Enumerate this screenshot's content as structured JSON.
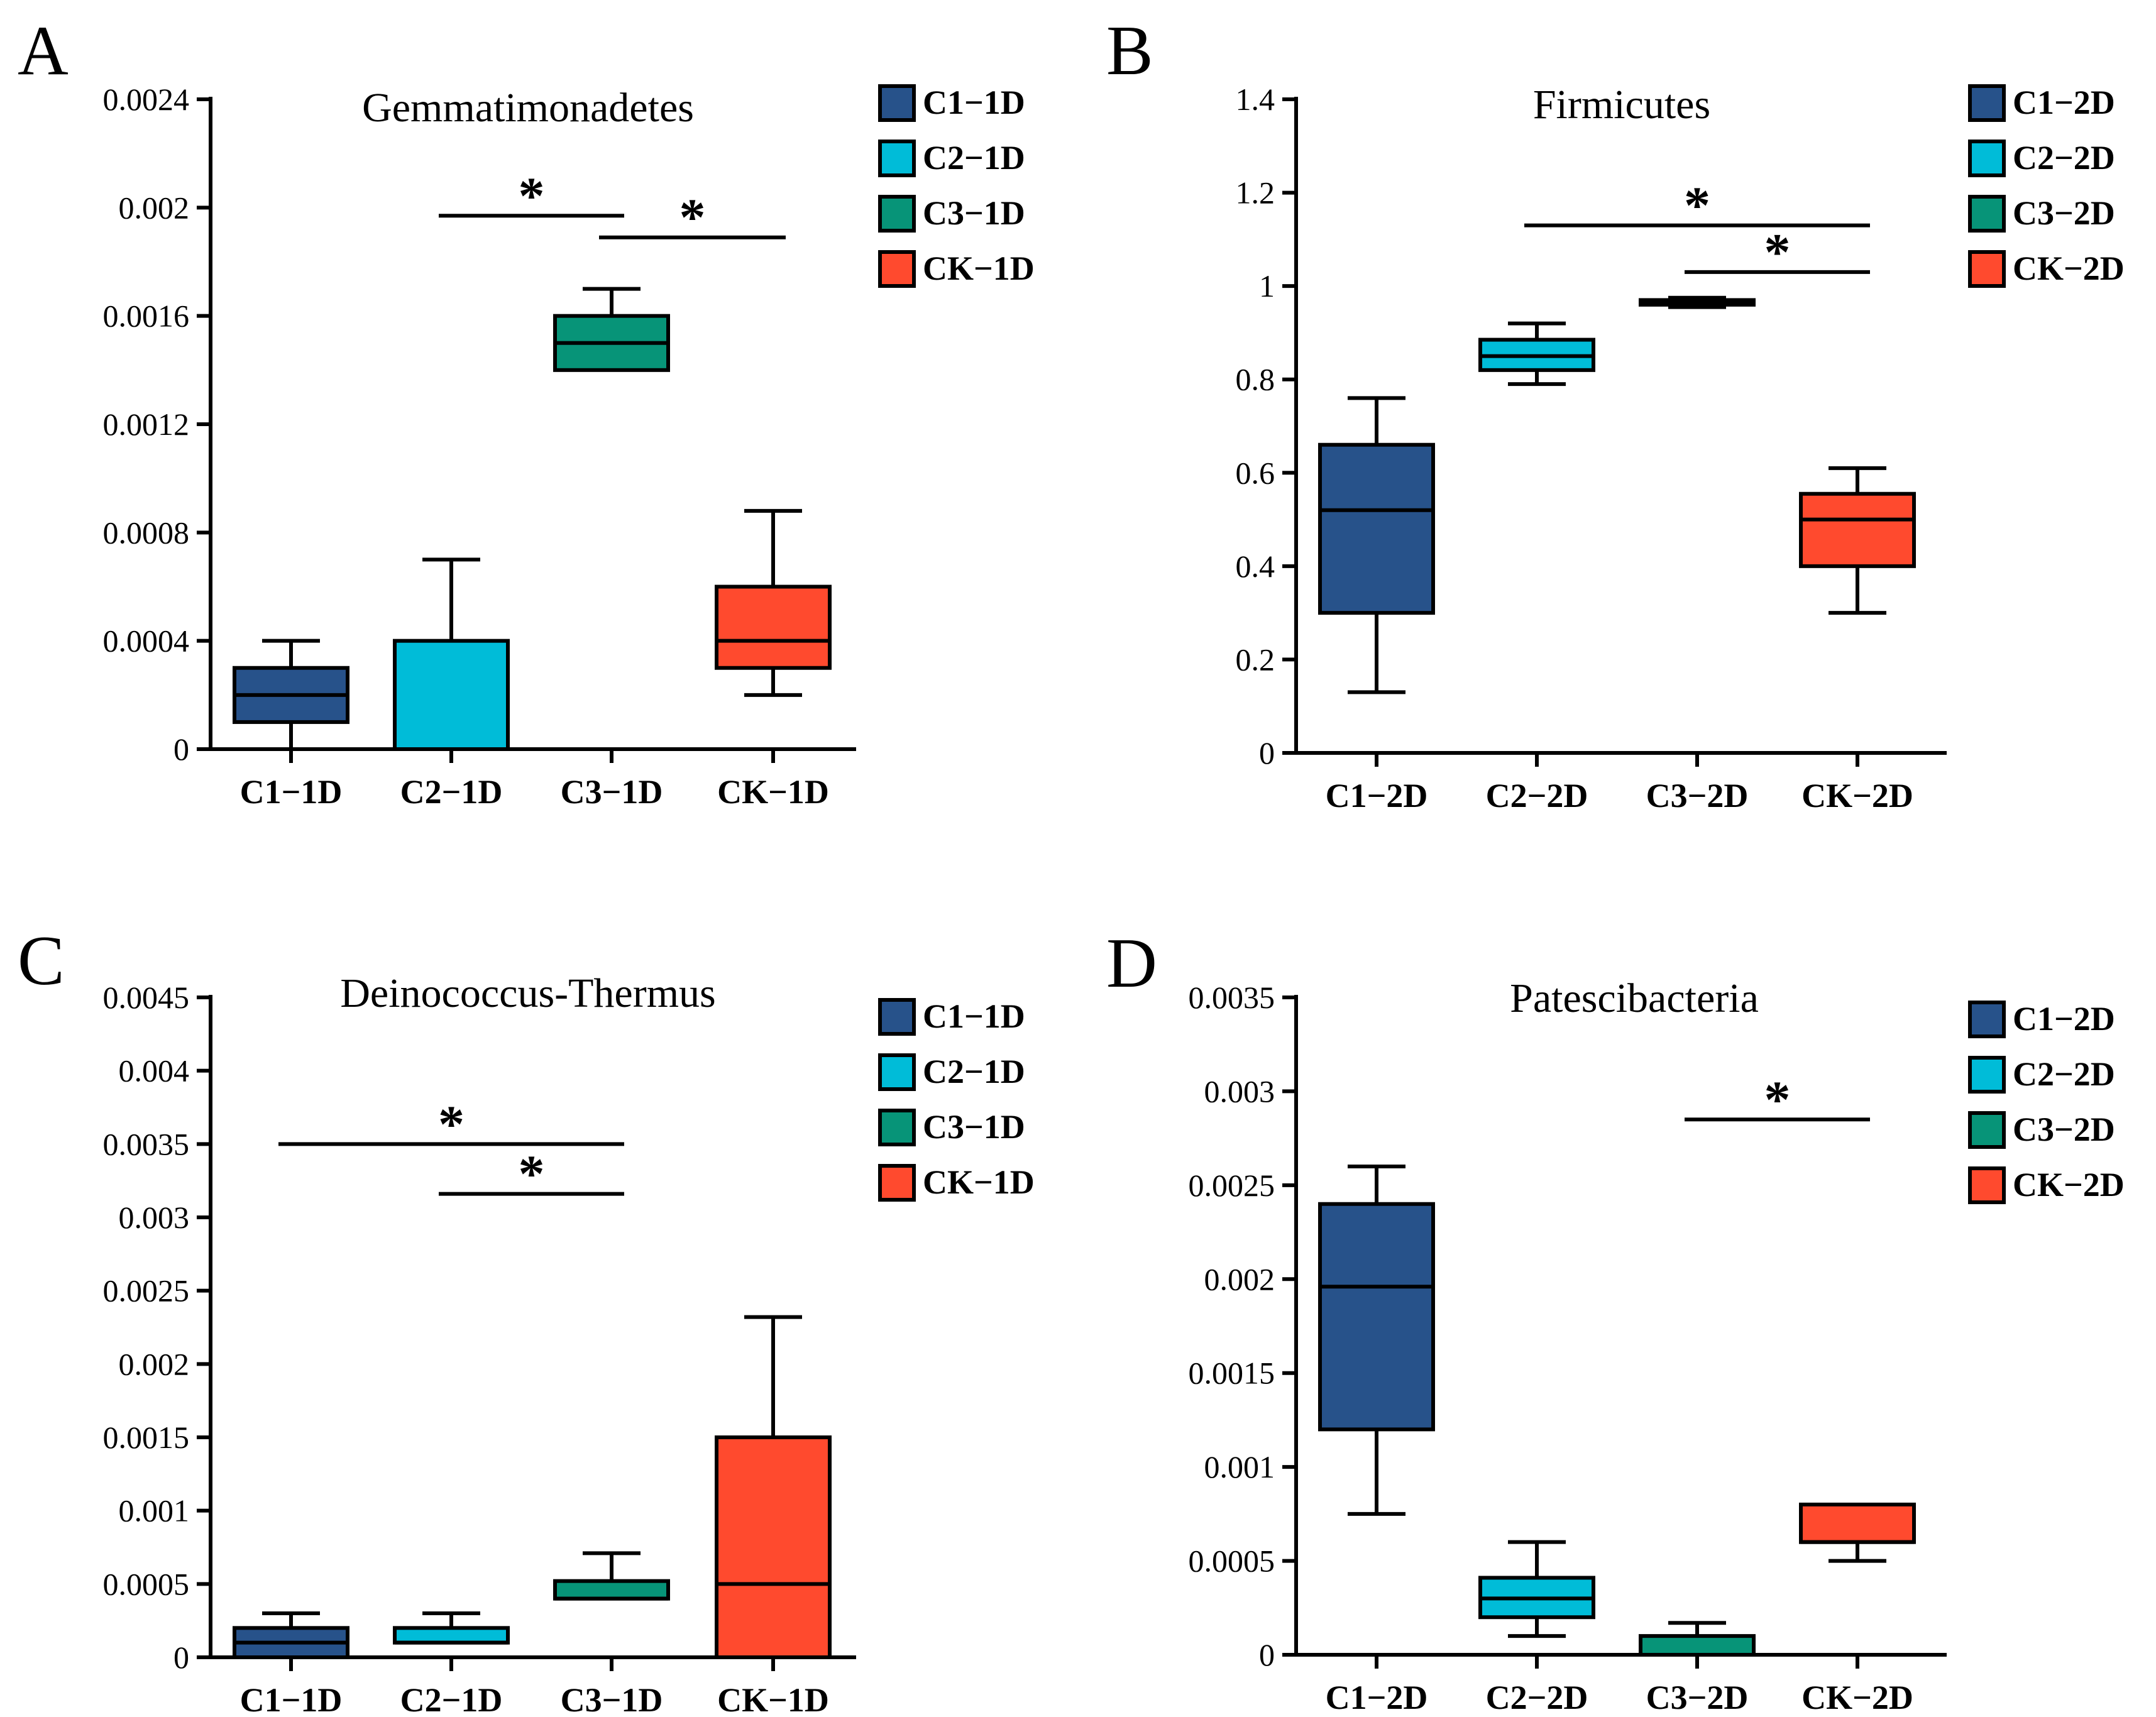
{
  "chart_data": [
    {
      "panel": "A",
      "type": "boxplot",
      "title": "Gemmatimonadetes",
      "xlabel": "",
      "ylabel": "",
      "ylim": [
        0,
        0.0024
      ],
      "yticks": [
        "0",
        "0.0004",
        "0.0008",
        "0.0012",
        "0.0016",
        "0.002",
        "0.0024"
      ],
      "categories": [
        "C1−1D",
        "C2−1D",
        "C3−1D",
        "CK−1D"
      ],
      "legend": [
        "C1−1D",
        "C2−1D",
        "C3−1D",
        "CK−1D"
      ],
      "colors": [
        "#27528a",
        "#00bcd8",
        "#079478",
        "#ff4a2e"
      ],
      "boxes": [
        {
          "min": 0,
          "q1": 0.0001,
          "median": 0.0002,
          "q3": 0.0003,
          "max": 0.0004
        },
        {
          "min": 0,
          "q1": 0,
          "median": 0,
          "q3": 0.0004,
          "max": 0.0007
        },
        {
          "min": 0.0014,
          "q1": 0.0014,
          "median": 0.0015,
          "q3": 0.0016,
          "max": 0.0017
        },
        {
          "min": 0.0002,
          "q1": 0.0003,
          "median": 0.0004,
          "q3": 0.0006,
          "max": 0.00088
        }
      ],
      "significance": [
        {
          "from": 1,
          "to": 2,
          "y": 0.00197,
          "label": "*"
        },
        {
          "from": 2,
          "to": 3,
          "y": 0.00189,
          "label": "*"
        }
      ]
    },
    {
      "panel": "B",
      "type": "boxplot",
      "title": "Firmicutes",
      "xlabel": "",
      "ylabel": "",
      "ylim": [
        0,
        1.4
      ],
      "yticks": [
        "0",
        "0.2",
        "0.4",
        "0.6",
        "0.8",
        "1",
        "1.2",
        "1.4"
      ],
      "categories": [
        "C1−2D",
        "C2−2D",
        "C3−2D",
        "CK−2D"
      ],
      "legend": [
        "C1−2D",
        "C2−2D",
        "C3−2D",
        "CK−2D"
      ],
      "colors": [
        "#27528a",
        "#00bcd8",
        "#079478",
        "#ff4a2e"
      ],
      "boxes": [
        {
          "min": 0.13,
          "q1": 0.3,
          "median": 0.52,
          "q3": 0.66,
          "max": 0.76
        },
        {
          "min": 0.79,
          "q1": 0.82,
          "median": 0.85,
          "q3": 0.885,
          "max": 0.92
        },
        {
          "min": 0.955,
          "q1": 0.96,
          "median": 0.965,
          "q3": 0.97,
          "max": 0.975
        },
        {
          "min": 0.3,
          "q1": 0.4,
          "median": 0.5,
          "q3": 0.555,
          "max": 0.61
        }
      ],
      "significance": [
        {
          "from": 1,
          "to": 3,
          "y": 1.13,
          "label": "*"
        },
        {
          "from": 2,
          "to": 3,
          "y": 1.03,
          "label": "*"
        }
      ]
    },
    {
      "panel": "C",
      "type": "boxplot",
      "title": "Deinococcus-Thermus",
      "xlabel": "",
      "ylabel": "",
      "ylim": [
        0,
        0.0045
      ],
      "yticks": [
        "0",
        "0.0005",
        "0.001",
        "0.0015",
        "0.002",
        "0.0025",
        "0.003",
        "0.0035",
        "0.004",
        "0.0045"
      ],
      "categories": [
        "C1−1D",
        "C2−1D",
        "C3−1D",
        "CK−1D"
      ],
      "legend": [
        "C1−1D",
        "C2−1D",
        "C3−1D",
        "CK−1D"
      ],
      "colors": [
        "#27528a",
        "#00bcd8",
        "#079478",
        "#ff4a2e"
      ],
      "boxes": [
        {
          "min": 0,
          "q1": 0,
          "median": 0.0001,
          "q3": 0.0002,
          "max": 0.0003
        },
        {
          "min": 0.0001,
          "q1": 0.0001,
          "median": 0.0001,
          "q3": 0.0002,
          "max": 0.0003
        },
        {
          "min": 0.0004,
          "q1": 0.0004,
          "median": 0.0004,
          "q3": 0.00052,
          "max": 0.00071
        },
        {
          "min": 0,
          "q1": 0,
          "median": 0.0005,
          "q3": 0.0015,
          "max": 0.00232
        }
      ],
      "significance": [
        {
          "from": 0,
          "to": 2,
          "y": 0.0035,
          "label": "*"
        },
        {
          "from": 1,
          "to": 2,
          "y": 0.00316,
          "label": "*"
        }
      ]
    },
    {
      "panel": "D",
      "type": "boxplot",
      "title": "Patescibacteria",
      "xlabel": "",
      "ylabel": "",
      "ylim": [
        0,
        0.0035
      ],
      "yticks": [
        "0",
        "0.0005",
        "0.001",
        "0.0015",
        "0.002",
        "0.0025",
        "0.003",
        "0.0035"
      ],
      "categories": [
        "C1−2D",
        "C2−2D",
        "C3−2D",
        "CK−2D"
      ],
      "legend": [
        "C1−2D",
        "C2−2D",
        "C3−2D",
        "CK−2D"
      ],
      "colors": [
        "#27528a",
        "#00bcd8",
        "#079478",
        "#ff4a2e"
      ],
      "boxes": [
        {
          "min": 0.00075,
          "q1": 0.0012,
          "median": 0.00196,
          "q3": 0.0024,
          "max": 0.0026
        },
        {
          "min": 0.0001,
          "q1": 0.0002,
          "median": 0.0003,
          "q3": 0.00041,
          "max": 0.0006
        },
        {
          "min": 0,
          "q1": 0,
          "median": 0,
          "q3": 0.0001,
          "max": 0.00017
        },
        {
          "min": 0.0005,
          "q1": 0.0006,
          "median": 0.0006,
          "q3": 0.0008,
          "max": 0.0008
        }
      ],
      "significance": [
        {
          "from": 2,
          "to": 3,
          "y": 0.00285,
          "label": "*"
        }
      ]
    }
  ]
}
